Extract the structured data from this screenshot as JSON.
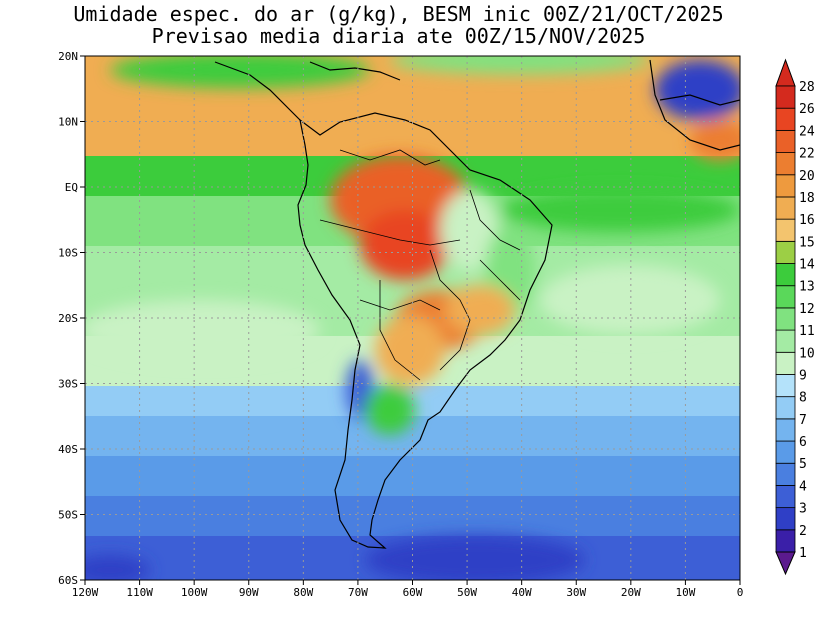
{
  "title": {
    "line1": "Umidade espec. do ar (g/kg), BESM inic 00Z/21/OCT/2025",
    "line2": "Previsao media diaria ate 00Z/15/NOV/2025"
  },
  "axes": {
    "lat_labels": [
      "20N",
      "10N",
      "EQ",
      "10S",
      "20S",
      "30S",
      "40S",
      "50S",
      "60S"
    ],
    "lat_values": [
      20,
      10,
      0,
      -10,
      -20,
      -30,
      -40,
      -50,
      -60
    ],
    "lon_labels": [
      "120W",
      "110W",
      "100W",
      "90W",
      "80W",
      "70W",
      "60W",
      "50W",
      "40W",
      "30W",
      "20W",
      "10W",
      "0"
    ],
    "lon_values": [
      -120,
      -110,
      -100,
      -90,
      -80,
      -70,
      -60,
      -50,
      -40,
      -30,
      -20,
      -10,
      0
    ]
  },
  "colorbar": {
    "levels": [
      "1",
      "2",
      "3",
      "4",
      "5",
      "6",
      "7",
      "8",
      "9",
      "10",
      "11",
      "12",
      "13",
      "14",
      "15",
      "16",
      "18",
      "20",
      "22",
      "24",
      "26",
      "28"
    ],
    "colors": [
      "#5b1a8e",
      "#3a1fa8",
      "#2f3fc6",
      "#3d5fd6",
      "#4a7fe0",
      "#5a9be8",
      "#74b4ef",
      "#93ccf5",
      "#b4e2fa",
      "#c9f2c4",
      "#a4eba4",
      "#80e280",
      "#5ad85a",
      "#3ccc3c",
      "#9ccf45",
      "#f3c46e",
      "#f0ad52",
      "#ee9a3e",
      "#ec7e30",
      "#ea6128",
      "#e84522",
      "#d42a1e"
    ]
  }
}
